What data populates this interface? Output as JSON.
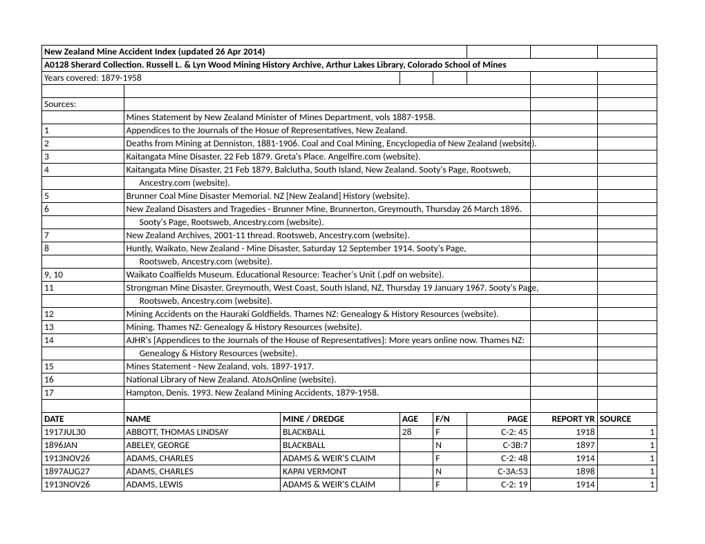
{
  "title": "New Zealand Mine Accident Index (updated 26 Apr 2014)",
  "subtitle": "A0128 Sherard Collection.  Russell L. & Lyn Wood Mining History Archive, Arthur Lakes Library, Colorado School of Mines",
  "years": "Years covered: 1879-1958",
  "sources_label": "Sources:",
  "sources": [
    {
      "key": "",
      "text": "Mines Statement by New Zealand Minister of Mines Department, vols 1887-1958.",
      "indent": false
    },
    {
      "key": "1",
      "text": "Appendices to the Journals of the Hosue of Representatives, New Zealand.",
      "indent": false
    },
    {
      "key": "2",
      "text": "Deaths from Mining at Denniston, 1881-1906. Coal and Coal Mining, Encyclopedia of New Zealand (website).",
      "indent": false
    },
    {
      "key": "3",
      "text": "Kaitangata Mine Disaster, 22 Feb 1879. Greta's Place. Angelfire.com (website).",
      "indent": false
    },
    {
      "key": "4",
      "text": "Kaitangata Mine Disaster, 21 Feb 1879, Balclutha, South Island, New Zealand. Sooty's Page, Rootsweb,",
      "indent": false
    },
    {
      "key": "",
      "text": "Ancestry.com (website).",
      "indent": true
    },
    {
      "key": "5",
      "text": "Brunner Coal Mine Disaster Memorial. NZ [New Zealand] History (website).",
      "indent": false
    },
    {
      "key": "6",
      "text": "New Zealand Disasters and Tragedies - Brunner Mine, Brunnerton, Greymouth, Thursday 26 March 1896.",
      "indent": false
    },
    {
      "key": "",
      "text": "Sooty's Page, Rootsweb, Ancestry.com (website).",
      "indent": true
    },
    {
      "key": "7",
      "text": "New Zealand Archives, 2001-11 thread. Rootsweb, Ancestry.com (website).",
      "indent": false
    },
    {
      "key": "8",
      "text": "Huntly, Waikato, New Zealand - Mine Disaster, Saturday 12 September 1914. Sooty's Page,",
      "indent": false
    },
    {
      "key": "",
      "text": "Rootsweb, Ancestry.com (website).",
      "indent": true
    },
    {
      "key": "9, 10",
      "text": "Waikato Coalfields Museum. Educational Resource: Teacher's Unit (.pdf on website).",
      "indent": false
    },
    {
      "key": "11",
      "text": "Strongman Mine Disaster, Greymouth, West Coast, South Island, NZ, Thursday 19 January 1967. Sooty's Page,",
      "indent": false
    },
    {
      "key": "",
      "text": "Rootsweb, Ancestry.com (website).",
      "indent": true
    },
    {
      "key": "12",
      "text": "Mining Accidents on the Hauraki Goldfields. Thames NZ: Genealogy & History Resources (website).",
      "indent": false
    },
    {
      "key": "13",
      "text": "Mining. Thames NZ: Genealogy & History Resources (website).",
      "indent": false
    },
    {
      "key": "14",
      "text": "AJHR's [Appendices to the Journals of the House of Representatives]: More years online now. Thames NZ:",
      "indent": false
    },
    {
      "key": "",
      "text": "Genealogy & History Resources (website).",
      "indent": true
    },
    {
      "key": "15",
      "text": "Mines Statement - New Zealand, vols. 1897-1917.",
      "indent": false
    },
    {
      "key": "16",
      "text": "National Library of New Zealand. AtoJsOnline (website).",
      "indent": false
    },
    {
      "key": "17",
      "text": "Hampton, Denis. 1993. New Zealand Mining Accidents, 1879-1958.",
      "indent": false
    }
  ],
  "headers": {
    "date": "DATE",
    "name": "NAME",
    "mine": "MINE / DREDGE",
    "age": "AGE",
    "fn": "F/N",
    "page": "PAGE",
    "report_yr": "REPORT YR",
    "source": "SOURCE"
  },
  "rows": [
    {
      "date": "1917JUL30",
      "name": "ABBOTT, THOMAS LINDSAY",
      "mine": "BLACKBALL",
      "age": "28",
      "fn": "F",
      "page": "C-2:  45",
      "yr": "1918",
      "src": "1"
    },
    {
      "date": "1896JAN",
      "name": "ABELEY, GEORGE",
      "mine": "BLACKBALL",
      "age": "",
      "fn": "N",
      "page": "C-3B:7",
      "yr": "1897",
      "src": "1"
    },
    {
      "date": "1913NOV26",
      "name": "ADAMS, CHARLES",
      "mine": "ADAMS & WEIR'S CLAIM",
      "age": "",
      "fn": "F",
      "page": "C-2:  48",
      "yr": "1914",
      "src": "1"
    },
    {
      "date": "1897AUG27",
      "name": "ADAMS, CHARLES",
      "mine": "KAPAI VERMONT",
      "age": "",
      "fn": "N",
      "page": "C-3A:53",
      "yr": "1898",
      "src": "1"
    },
    {
      "date": "1913NOV26",
      "name": "ADAMS, LEWIS",
      "mine": "ADAMS & WEIR'S CLAIM",
      "age": "",
      "fn": "F",
      "page": "C-2:  19",
      "yr": "1914",
      "src": "1"
    }
  ]
}
